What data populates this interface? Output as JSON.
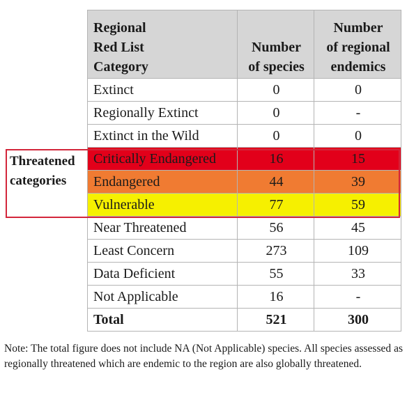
{
  "table": {
    "headers": {
      "category": [
        "Regional",
        "Red List",
        "Category"
      ],
      "species": [
        "Number",
        "of species"
      ],
      "endemics": [
        "Number",
        "of regional",
        "endemics"
      ]
    },
    "rows": [
      {
        "category": "Extinct",
        "species": "0",
        "endemics": "0"
      },
      {
        "category": "Regionally Extinct",
        "species": "0",
        "endemics": "-"
      },
      {
        "category": "Extinct in the Wild",
        "species": "0",
        "endemics": "0"
      },
      {
        "category": "Critically Endangered",
        "species": "16",
        "endemics": "15"
      },
      {
        "category": "Endangered",
        "species": "44",
        "endemics": "39"
      },
      {
        "category": "Vulnerable",
        "species": "77",
        "endemics": "59"
      },
      {
        "category": "Near Threatened",
        "species": "56",
        "endemics": "45"
      },
      {
        "category": "Least Concern",
        "species": "273",
        "endemics": "109"
      },
      {
        "category": "Data Deficient",
        "species": "55",
        "endemics": "33"
      },
      {
        "category": "Not Applicable",
        "species": "16",
        "endemics": "-"
      },
      {
        "category": "Total",
        "species": "521",
        "endemics": "300"
      }
    ]
  },
  "threatened_label": [
    "Threatened",
    "categories"
  ],
  "colors": {
    "header_bg": "#d6d6d6",
    "critically_endangered": "#e2001a",
    "endangered": "#f07b32",
    "vulnerable": "#f6f000",
    "threatened_border": "#d3263b"
  },
  "note": "Note: The total figure does not include NA (Not Applicable) species. All species assessed as regionally threatened which are endemic to the region are also globally threatened."
}
